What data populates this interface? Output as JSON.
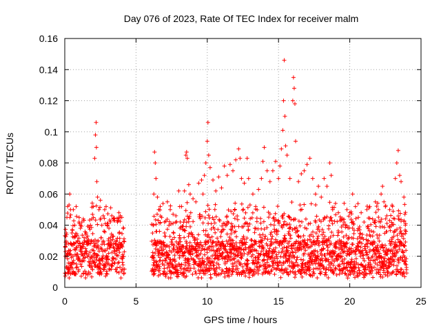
{
  "chart_data": {
    "type": "scatter",
    "title": "Day 076 of 2023, Rate Of TEC Index for receiver malm",
    "xlabel": "GPS time / hours",
    "ylabel": "ROTI / TECUs",
    "xlim": [
      0,
      25
    ],
    "ylim": [
      0,
      0.16
    ],
    "xticks": [
      "0",
      "5",
      "10",
      "15",
      "20",
      "25"
    ],
    "yticks": [
      "0",
      "0.02",
      "0.04",
      "0.06",
      "0.08",
      "0.1",
      "0.12",
      "0.14",
      "0.16"
    ],
    "grid": true,
    "marker": "+",
    "color": "#ff0000",
    "data_gap_hours": [
      4.2,
      6.1
    ],
    "series": [
      {
        "points": [
          [
            0.05,
            0.02
          ],
          [
            0.1,
            0.035
          ],
          [
            0.15,
            0.045
          ],
          [
            0.2,
            0.052
          ],
          [
            0.25,
            0.028
          ],
          [
            0.3,
            0.053
          ],
          [
            0.35,
            0.06
          ],
          [
            0.4,
            0.05
          ],
          [
            0.5,
            0.035
          ],
          [
            0.6,
            0.05
          ],
          [
            0.7,
            0.04
          ],
          [
            0.8,
            0.052
          ],
          [
            0.9,
            0.03
          ],
          [
            1.0,
            0.042
          ],
          [
            1.1,
            0.038
          ],
          [
            1.2,
            0.042
          ],
          [
            1.3,
            0.044
          ],
          [
            1.4,
            0.03
          ],
          [
            1.5,
            0.035
          ],
          [
            1.6,
            0.033
          ],
          [
            1.7,
            0.028
          ],
          [
            1.8,
            0.04
          ],
          [
            1.9,
            0.044
          ],
          [
            2.0,
            0.052
          ],
          [
            2.1,
            0.083
          ],
          [
            2.15,
            0.098
          ],
          [
            2.2,
            0.106
          ],
          [
            2.22,
            0.09
          ],
          [
            2.25,
            0.068
          ],
          [
            2.3,
            0.058
          ],
          [
            2.4,
            0.05
          ],
          [
            2.5,
            0.056
          ],
          [
            2.6,
            0.04
          ],
          [
            2.7,
            0.046
          ],
          [
            2.8,
            0.05
          ],
          [
            2.9,
            0.052
          ],
          [
            3.0,
            0.04
          ],
          [
            3.1,
            0.038
          ],
          [
            3.2,
            0.032
          ],
          [
            3.3,
            0.046
          ],
          [
            3.4,
            0.044
          ],
          [
            3.5,
            0.043
          ],
          [
            3.6,
            0.03
          ],
          [
            3.7,
            0.042
          ],
          [
            3.8,
            0.048
          ],
          [
            3.9,
            0.046
          ],
          [
            4.0,
            0.045
          ],
          [
            4.1,
            0.038
          ],
          [
            6.2,
            0.04
          ],
          [
            6.25,
            0.06
          ],
          [
            6.3,
            0.087
          ],
          [
            6.35,
            0.08
          ],
          [
            6.4,
            0.07
          ],
          [
            6.5,
            0.058
          ],
          [
            6.6,
            0.05
          ],
          [
            6.7,
            0.052
          ],
          [
            6.8,
            0.045
          ],
          [
            7.0,
            0.042
          ],
          [
            7.2,
            0.055
          ],
          [
            7.4,
            0.05
          ],
          [
            7.6,
            0.047
          ],
          [
            7.8,
            0.046
          ],
          [
            8.0,
            0.062
          ],
          [
            8.2,
            0.052
          ],
          [
            8.4,
            0.062
          ],
          [
            8.5,
            0.085
          ],
          [
            8.55,
            0.087
          ],
          [
            8.6,
            0.083
          ],
          [
            8.7,
            0.066
          ],
          [
            8.8,
            0.06
          ],
          [
            9.0,
            0.057
          ],
          [
            9.2,
            0.055
          ],
          [
            9.4,
            0.067
          ],
          [
            9.6,
            0.069
          ],
          [
            9.7,
            0.06
          ],
          [
            9.8,
            0.072
          ],
          [
            9.9,
            0.08
          ],
          [
            10.0,
            0.094
          ],
          [
            10.05,
            0.106
          ],
          [
            10.1,
            0.085
          ],
          [
            10.2,
            0.077
          ],
          [
            10.4,
            0.069
          ],
          [
            10.6,
            0.062
          ],
          [
            10.8,
            0.071
          ],
          [
            11.0,
            0.064
          ],
          [
            11.2,
            0.078
          ],
          [
            11.4,
            0.072
          ],
          [
            11.6,
            0.079
          ],
          [
            11.8,
            0.075
          ],
          [
            12.0,
            0.082
          ],
          [
            12.2,
            0.089
          ],
          [
            12.3,
            0.083
          ],
          [
            12.4,
            0.07
          ],
          [
            12.6,
            0.067
          ],
          [
            12.8,
            0.083
          ],
          [
            12.9,
            0.07
          ],
          [
            13.0,
            0.053
          ],
          [
            13.2,
            0.06
          ],
          [
            13.4,
            0.052
          ],
          [
            13.6,
            0.063
          ],
          [
            13.8,
            0.07
          ],
          [
            13.9,
            0.081
          ],
          [
            14.0,
            0.09
          ],
          [
            14.2,
            0.075
          ],
          [
            14.4,
            0.068
          ],
          [
            14.6,
            0.075
          ],
          [
            14.8,
            0.081
          ],
          [
            15.0,
            0.07
          ],
          [
            15.1,
            0.078
          ],
          [
            15.2,
            0.089
          ],
          [
            15.3,
            0.101
          ],
          [
            15.35,
            0.12
          ],
          [
            15.4,
            0.146
          ],
          [
            15.45,
            0.11
          ],
          [
            15.5,
            0.091
          ],
          [
            15.6,
            0.085
          ],
          [
            15.8,
            0.07
          ],
          [
            16.0,
            0.12
          ],
          [
            16.05,
            0.135
          ],
          [
            16.1,
            0.128
          ],
          [
            16.15,
            0.118
          ],
          [
            16.2,
            0.094
          ],
          [
            16.4,
            0.068
          ],
          [
            16.6,
            0.073
          ],
          [
            16.8,
            0.075
          ],
          [
            17.0,
            0.079
          ],
          [
            17.2,
            0.083
          ],
          [
            17.4,
            0.07
          ],
          [
            17.6,
            0.06
          ],
          [
            17.8,
            0.065
          ],
          [
            18.0,
            0.058
          ],
          [
            18.2,
            0.07
          ],
          [
            18.4,
            0.065
          ],
          [
            18.6,
            0.08
          ],
          [
            18.7,
            0.072
          ],
          [
            18.8,
            0.05
          ],
          [
            19.0,
            0.054
          ],
          [
            19.2,
            0.048
          ],
          [
            19.4,
            0.044
          ],
          [
            19.6,
            0.042
          ],
          [
            19.8,
            0.05
          ],
          [
            20.0,
            0.048
          ],
          [
            20.2,
            0.06
          ],
          [
            20.4,
            0.052
          ],
          [
            20.6,
            0.045
          ],
          [
            20.8,
            0.048
          ],
          [
            21.0,
            0.042
          ],
          [
            21.2,
            0.05
          ],
          [
            21.4,
            0.052
          ],
          [
            21.6,
            0.044
          ],
          [
            21.8,
            0.055
          ],
          [
            22.0,
            0.05
          ],
          [
            22.2,
            0.06
          ],
          [
            22.3,
            0.065
          ],
          [
            22.4,
            0.055
          ],
          [
            22.6,
            0.046
          ],
          [
            22.8,
            0.05
          ],
          [
            23.0,
            0.052
          ],
          [
            23.2,
            0.07
          ],
          [
            23.3,
            0.08
          ],
          [
            23.4,
            0.088
          ],
          [
            23.5,
            0.072
          ],
          [
            23.6,
            0.068
          ],
          [
            23.8,
            0.058
          ],
          [
            23.9,
            0.04
          ]
        ]
      }
    ]
  }
}
